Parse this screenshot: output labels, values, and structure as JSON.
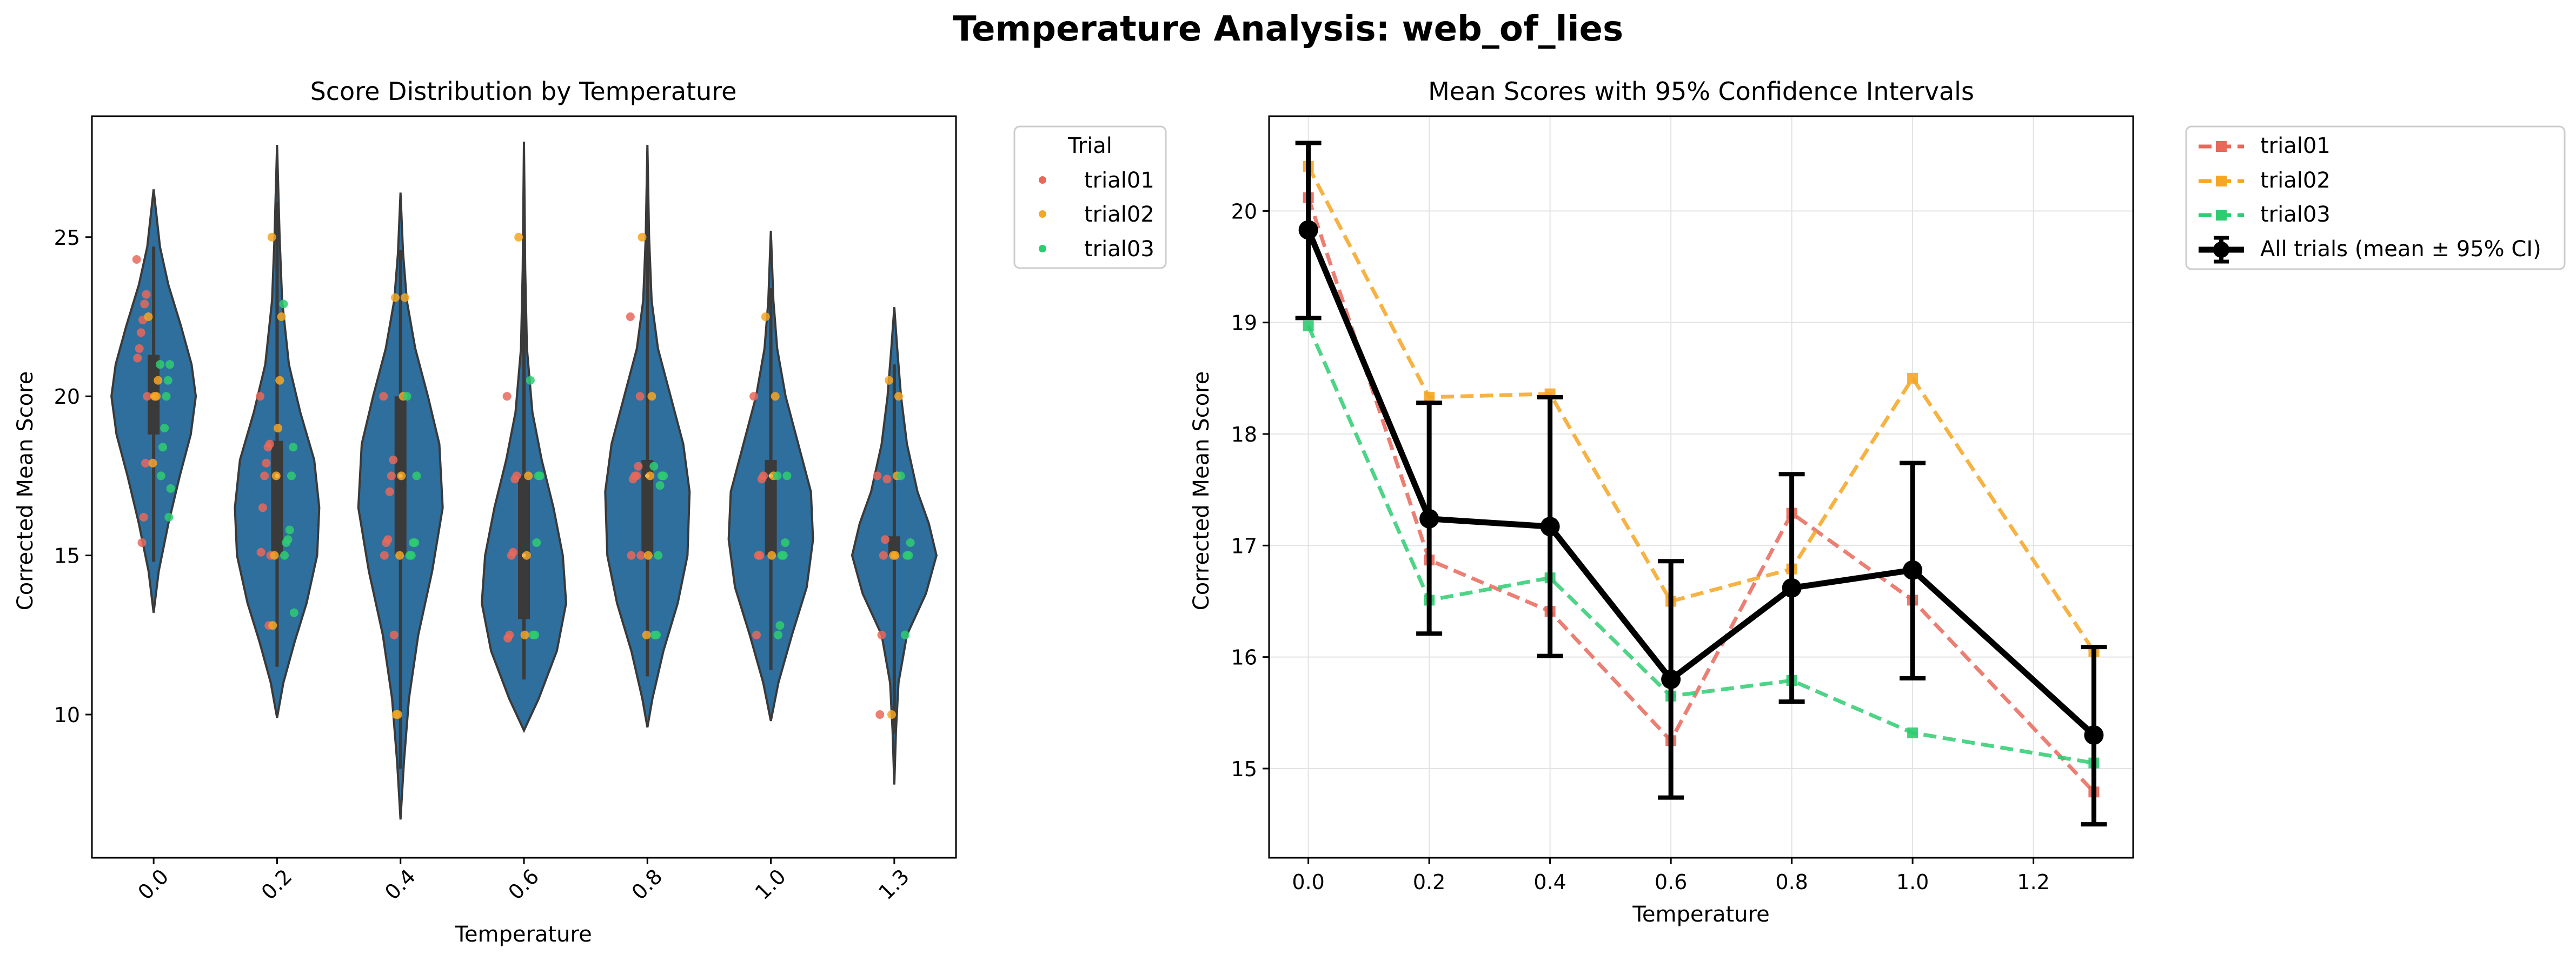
{
  "suptitle": "Temperature Analysis: web_of_lies",
  "colors": {
    "violin": "#2e6f9e",
    "violin_edge": "#3a3a3a",
    "trial01": "#e8685a",
    "trial02": "#f5a623",
    "trial03": "#2ecc71",
    "overall": "#000000"
  },
  "chart_data": [
    {
      "type": "violin",
      "title": "Score Distribution by Temperature",
      "xlabel": "Temperature",
      "ylabel": "Corrected Mean Score",
      "categories": [
        "0.0",
        "0.2",
        "0.4",
        "0.6",
        "0.8",
        "1.0",
        "1.3"
      ],
      "yticks": [
        10,
        15,
        20,
        25
      ],
      "ylim": [
        5.5,
        28.8
      ],
      "legend": {
        "title": "Trial",
        "entries": [
          "trial01",
          "trial02",
          "trial03"
        ],
        "placement": "outside right"
      },
      "violins": [
        {
          "category": "0.0",
          "min": 13.2,
          "max": 26.5,
          "q1": 18.8,
          "median": 20.0,
          "q3": 21.3,
          "profile": [
            [
              13.2,
              0.0
            ],
            [
              14.5,
              0.12
            ],
            [
              16.0,
              0.35
            ],
            [
              17.5,
              0.62
            ],
            [
              18.8,
              0.88
            ],
            [
              20.0,
              1.0
            ],
            [
              21.0,
              0.9
            ],
            [
              22.2,
              0.65
            ],
            [
              23.5,
              0.35
            ],
            [
              24.7,
              0.15
            ],
            [
              26.5,
              0.0
            ]
          ]
        },
        {
          "category": "0.2",
          "min": 9.9,
          "max": 27.9,
          "q1": 15.0,
          "median": 17.5,
          "q3": 18.6,
          "profile": [
            [
              9.9,
              0.0
            ],
            [
              11.0,
              0.15
            ],
            [
              12.3,
              0.42
            ],
            [
              13.5,
              0.7
            ],
            [
              15.0,
              0.95
            ],
            [
              16.5,
              1.0
            ],
            [
              18.0,
              0.88
            ],
            [
              19.5,
              0.55
            ],
            [
              21.0,
              0.28
            ],
            [
              23.0,
              0.12
            ],
            [
              25.0,
              0.06
            ],
            [
              27.9,
              0.0
            ]
          ]
        },
        {
          "category": "0.4",
          "min": 6.7,
          "max": 26.4,
          "q1": 15.0,
          "median": 17.5,
          "q3": 20.0,
          "profile": [
            [
              6.7,
              0.0
            ],
            [
              8.5,
              0.08
            ],
            [
              10.5,
              0.2
            ],
            [
              12.5,
              0.42
            ],
            [
              14.5,
              0.75
            ],
            [
              16.5,
              1.0
            ],
            [
              18.5,
              0.92
            ],
            [
              20.0,
              0.65
            ],
            [
              21.5,
              0.35
            ],
            [
              23.0,
              0.15
            ],
            [
              24.5,
              0.06
            ],
            [
              26.4,
              0.0
            ]
          ]
        },
        {
          "category": "0.6",
          "min": 9.5,
          "max": 28.0,
          "q1": 13.0,
          "median": 15.0,
          "q3": 17.5,
          "profile": [
            [
              9.5,
              0.0
            ],
            [
              10.5,
              0.35
            ],
            [
              12.0,
              0.78
            ],
            [
              13.5,
              1.0
            ],
            [
              15.0,
              0.92
            ],
            [
              16.5,
              0.7
            ],
            [
              18.0,
              0.42
            ],
            [
              19.5,
              0.2
            ],
            [
              21.5,
              0.07
            ],
            [
              24.0,
              0.03
            ],
            [
              28.0,
              0.0
            ]
          ]
        },
        {
          "category": "0.8",
          "min": 9.6,
          "max": 27.9,
          "q1": 15.0,
          "median": 17.5,
          "q3": 18.0,
          "profile": [
            [
              9.6,
              0.0
            ],
            [
              10.5,
              0.12
            ],
            [
              12.0,
              0.38
            ],
            [
              13.5,
              0.72
            ],
            [
              15.0,
              0.95
            ],
            [
              17.0,
              1.0
            ],
            [
              18.5,
              0.85
            ],
            [
              20.0,
              0.55
            ],
            [
              21.5,
              0.25
            ],
            [
              23.0,
              0.1
            ],
            [
              25.0,
              0.04
            ],
            [
              27.9,
              0.0
            ]
          ]
        },
        {
          "category": "1.0",
          "min": 9.8,
          "max": 25.2,
          "q1": 15.0,
          "median": 17.5,
          "q3": 18.0,
          "profile": [
            [
              9.8,
              0.0
            ],
            [
              11.0,
              0.18
            ],
            [
              12.5,
              0.5
            ],
            [
              14.0,
              0.85
            ],
            [
              15.5,
              1.0
            ],
            [
              17.0,
              0.95
            ],
            [
              18.5,
              0.65
            ],
            [
              20.0,
              0.35
            ],
            [
              21.5,
              0.15
            ],
            [
              23.0,
              0.06
            ],
            [
              25.2,
              0.0
            ]
          ]
        },
        {
          "category": "1.3",
          "min": 7.8,
          "max": 22.8,
          "q1": 15.0,
          "median": 15.0,
          "q3": 15.6,
          "profile": [
            [
              7.8,
              0.0
            ],
            [
              9.5,
              0.04
            ],
            [
              11.0,
              0.1
            ],
            [
              12.5,
              0.3
            ],
            [
              13.8,
              0.75
            ],
            [
              15.0,
              1.0
            ],
            [
              16.0,
              0.82
            ],
            [
              17.0,
              0.55
            ],
            [
              18.5,
              0.3
            ],
            [
              20.0,
              0.16
            ],
            [
              21.5,
              0.07
            ],
            [
              22.8,
              0.0
            ]
          ]
        }
      ],
      "points": {
        "trial01": [
          [
            0,
            [
              24.3,
              23.2,
              22.9,
              22.4,
              22.0,
              21.5,
              21.2,
              20.0,
              17.9,
              16.2,
              15.4
            ]
          ],
          [
            1,
            [
              20.0,
              18.5,
              18.4,
              17.9,
              17.5,
              16.5,
              15.1,
              15.0,
              12.8
            ]
          ],
          [
            2,
            [
              20.0,
              18.0,
              17.5,
              17.0,
              15.5,
              15.4,
              15.0,
              12.5
            ]
          ],
          [
            3,
            [
              20.0,
              17.5,
              17.4,
              15.1,
              15.0,
              12.5,
              12.4
            ]
          ],
          [
            4,
            [
              22.5,
              20.0,
              17.8,
              17.5,
              17.5,
              17.4,
              15.0,
              15.0
            ]
          ],
          [
            5,
            [
              20.0,
              17.5,
              17.4,
              15.0,
              15.0,
              12.5
            ]
          ],
          [
            6,
            [
              17.5,
              17.4,
              15.5,
              15.0,
              12.5,
              10.0
            ]
          ]
        ],
        "trial02": [
          [
            0,
            [
              22.5,
              20.5,
              20.0,
              20.0,
              17.9
            ]
          ],
          [
            1,
            [
              25.0,
              22.5,
              20.5,
              19.0,
              17.5,
              15.0,
              12.8
            ]
          ],
          [
            2,
            [
              23.1,
              23.1,
              20.0,
              17.5,
              15.0,
              10.0,
              10.0
            ]
          ],
          [
            3,
            [
              25.0,
              17.5,
              15.0,
              12.5
            ]
          ],
          [
            4,
            [
              25.0,
              20.0,
              17.5,
              15.0,
              12.5
            ]
          ],
          [
            5,
            [
              22.5,
              20.0,
              17.5,
              15.0
            ]
          ],
          [
            6,
            [
              20.5,
              20.0,
              17.5,
              15.0,
              15.0,
              10.0
            ]
          ]
        ],
        "trial03": [
          [
            0,
            [
              21.0,
              21.0,
              20.5,
              20.0,
              19.0,
              18.4,
              17.5,
              17.1,
              16.2
            ]
          ],
          [
            1,
            [
              22.9,
              18.4,
              17.5,
              15.8,
              15.5,
              15.4,
              15.0,
              13.2
            ]
          ],
          [
            2,
            [
              20.0,
              17.5,
              15.4,
              15.4,
              15.0,
              15.0
            ]
          ],
          [
            3,
            [
              20.5,
              17.5,
              17.5,
              15.4,
              12.5,
              12.5
            ]
          ],
          [
            4,
            [
              17.8,
              17.5,
              17.5,
              17.2,
              15.0,
              12.5,
              12.5
            ]
          ],
          [
            5,
            [
              17.5,
              17.5,
              15.4,
              15.0,
              15.0,
              12.8,
              12.5
            ]
          ],
          [
            6,
            [
              17.5,
              15.4,
              15.0,
              15.0,
              12.5
            ]
          ]
        ]
      }
    },
    {
      "type": "line",
      "title": "Mean Scores with 95% Confidence Intervals",
      "xlabel": "Temperature",
      "ylabel": "Corrected Mean Score",
      "x": [
        0.0,
        0.2,
        0.4,
        0.6,
        0.8,
        1.0,
        1.3
      ],
      "xlim": [
        -0.065,
        1.365
      ],
      "ylim": [
        14.2,
        20.85
      ],
      "xticks": [
        "0.0",
        "0.2",
        "0.4",
        "0.6",
        "0.8",
        "1.0",
        "1.2"
      ],
      "yticks": [
        15,
        16,
        17,
        18,
        19,
        20
      ],
      "grid": true,
      "legend_placement": "outside right",
      "series": [
        {
          "name": "trial01",
          "values": [
            20.12,
            16.87,
            16.41,
            15.25,
            17.29,
            16.51,
            14.79
          ]
        },
        {
          "name": "trial02",
          "values": [
            20.4,
            18.33,
            18.36,
            16.5,
            16.79,
            18.5,
            16.05
          ]
        },
        {
          "name": "trial03",
          "values": [
            18.97,
            16.51,
            16.71,
            15.65,
            15.79,
            15.32,
            15.05
          ]
        },
        {
          "name": "All trials (mean ± 95% CI)",
          "values": [
            19.83,
            17.24,
            17.17,
            15.8,
            16.62,
            16.78,
            15.3
          ],
          "ci_low": [
            19.04,
            16.21,
            16.01,
            14.74,
            15.6,
            15.81,
            14.5
          ],
          "ci_high": [
            20.61,
            18.28,
            18.33,
            16.86,
            17.64,
            17.74,
            16.09
          ]
        }
      ]
    }
  ]
}
